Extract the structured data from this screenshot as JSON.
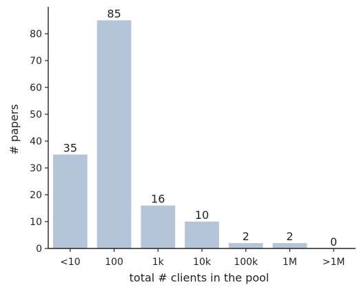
{
  "chart_data": {
    "type": "bar",
    "title": "",
    "xlabel": "total # clients in the pool",
    "ylabel": "# papers",
    "categories": [
      "<10",
      "100",
      "1k",
      "10k",
      "100k",
      "1M",
      ">1M"
    ],
    "values": [
      35,
      85,
      16,
      10,
      2,
      2,
      0
    ],
    "data_labels": [
      "35",
      "85",
      "16",
      "10",
      "2",
      "2",
      "0"
    ],
    "ylim": [
      0,
      90
    ],
    "yticks": [
      0,
      10,
      20,
      30,
      40,
      50,
      60,
      70,
      80
    ],
    "bar_color": "#b4c5da",
    "grid": false,
    "legend": "none"
  }
}
